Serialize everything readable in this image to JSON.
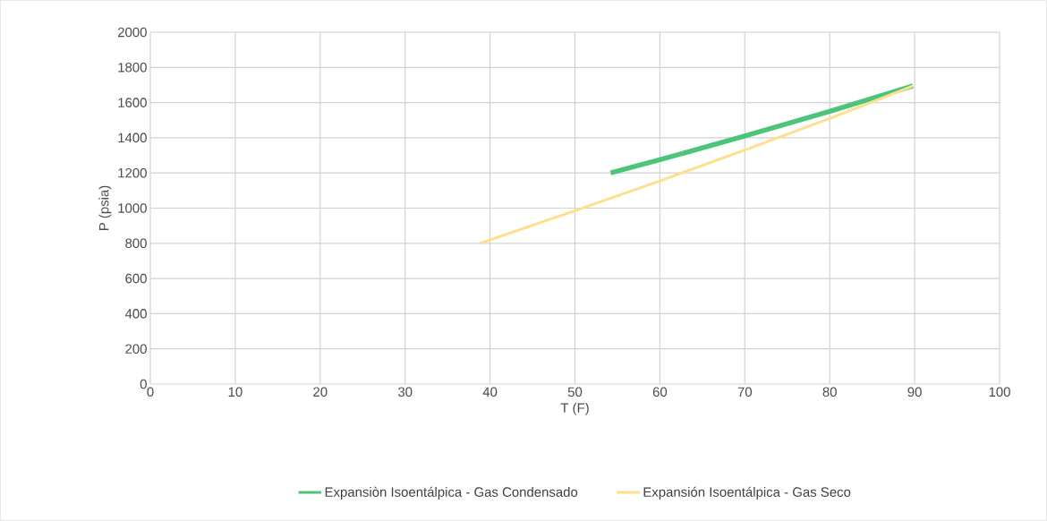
{
  "chart_data": {
    "type": "line",
    "xlabel": "T (F)",
    "ylabel": "P (psia)",
    "xlim": [
      0,
      100
    ],
    "ylim": [
      0,
      2000
    ],
    "xticks": [
      0,
      10,
      20,
      30,
      40,
      50,
      60,
      70,
      80,
      90,
      100
    ],
    "yticks": [
      0,
      200,
      400,
      600,
      800,
      1000,
      1200,
      1400,
      1600,
      1800,
      2000
    ],
    "grid": true,
    "legend": "bottom",
    "series": [
      {
        "name": "Expansiòn Isoentálpica - Gas Condensado",
        "color": "#4cc47a",
        "x": [
          54.2,
          60,
          70,
          80,
          89.8
        ],
        "values": [
          1200,
          1275,
          1410,
          1550,
          1695
        ]
      },
      {
        "name": "Expansión Isoentálpica - Gas Seco",
        "color": "#fde08c",
        "x": [
          38.8,
          50,
          60,
          70,
          80,
          89.8
        ],
        "values": [
          800,
          985,
          1155,
          1330,
          1510,
          1695
        ]
      }
    ]
  }
}
